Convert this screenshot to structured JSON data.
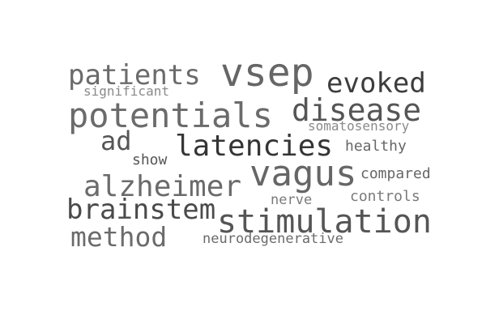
{
  "words": [
    {
      "text": "patients",
      "color": "#6b6b6b"
    },
    {
      "text": "vsep",
      "color": "#666666"
    },
    {
      "text": "evoked",
      "color": "#3d3d3d"
    },
    {
      "text": "significant",
      "color": "#8a8a8a"
    },
    {
      "text": "potentials",
      "color": "#6b6b6b"
    },
    {
      "text": "disease",
      "color": "#555555"
    },
    {
      "text": "somatosensory",
      "color": "#8a8a8a"
    },
    {
      "text": "ad",
      "color": "#555555"
    },
    {
      "text": "latencies",
      "color": "#353535"
    },
    {
      "text": "healthy",
      "color": "#666666"
    },
    {
      "text": "show",
      "color": "#555555"
    },
    {
      "text": "vagus",
      "color": "#666666"
    },
    {
      "text": "compared",
      "color": "#666666"
    },
    {
      "text": "alzheimer",
      "color": "#6b6b6b"
    },
    {
      "text": "nerve",
      "color": "#7a7a7a"
    },
    {
      "text": "controls",
      "color": "#7a7a7a"
    },
    {
      "text": "brainstem",
      "color": "#4a4a4a"
    },
    {
      "text": "stimulation",
      "color": "#555555"
    },
    {
      "text": "method",
      "color": "#6b6b6b"
    },
    {
      "text": "neurodegenerative",
      "color": "#6b6b6b"
    }
  ]
}
